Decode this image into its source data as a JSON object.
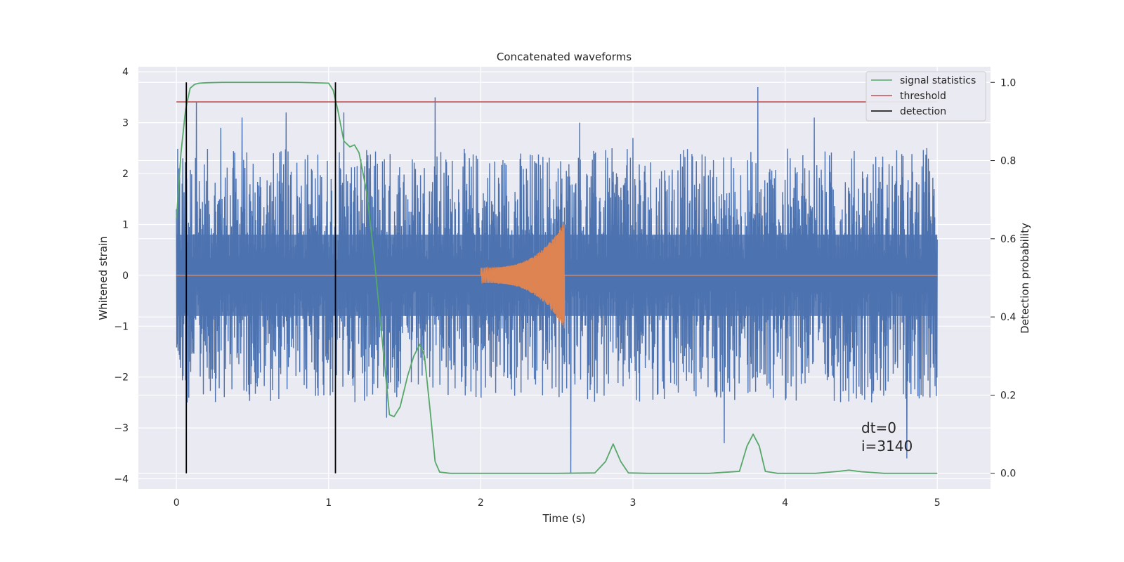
{
  "chart_data": {
    "type": "line",
    "title": "Concatenated waveforms",
    "xlabel": "Time (s)",
    "ylabel": "Whitened strain",
    "ylabel_right": "Detection probability",
    "xlim": [
      -0.25,
      5.35
    ],
    "ylim": [
      -4.2,
      4.1
    ],
    "ylim_right": [
      -0.04,
      1.04
    ],
    "xticks": [
      0,
      1,
      2,
      3,
      4,
      5
    ],
    "yticks": [
      -4,
      -3,
      -2,
      -1,
      0,
      1,
      2,
      3,
      4
    ],
    "yticks_right": [
      0.0,
      0.2,
      0.4,
      0.6,
      0.8,
      1.0
    ],
    "xtick_labels": [
      "0",
      "1",
      "2",
      "3",
      "4",
      "5"
    ],
    "ytick_labels": [
      "−4",
      "−3",
      "−2",
      "−1",
      "0",
      "1",
      "2",
      "3",
      "4"
    ],
    "ytick_labels_right": [
      "0.0",
      "0.2",
      "0.4",
      "0.6",
      "0.8",
      "1.0"
    ],
    "grid": true,
    "legend_position": "top-right",
    "colors": {
      "strain": "#4c72b0",
      "waveform": "#dd8452",
      "signal_statistics": "#55a868",
      "threshold": "#c44e52",
      "detection": "#000000",
      "background": "#eaeaf2"
    },
    "series": [
      {
        "name": "signal statistics",
        "axis": "right",
        "x": [
          0.0,
          0.03,
          0.06,
          0.09,
          0.12,
          0.15,
          0.2,
          0.3,
          0.5,
          0.8,
          1.0,
          1.03,
          1.06,
          1.1,
          1.14,
          1.17,
          1.2,
          1.25,
          1.3,
          1.35,
          1.4,
          1.43,
          1.47,
          1.52,
          1.56,
          1.6,
          1.63,
          1.67,
          1.7,
          1.73,
          1.8,
          2.0,
          2.5,
          2.75,
          2.82,
          2.87,
          2.92,
          2.97,
          3.1,
          3.5,
          3.7,
          3.75,
          3.79,
          3.83,
          3.87,
          3.95,
          4.2,
          4.35,
          4.42,
          4.5,
          4.65,
          5.0
        ],
        "values": [
          0.65,
          0.82,
          0.93,
          0.985,
          0.995,
          0.998,
          0.999,
          1.0,
          1.0,
          1.0,
          0.998,
          0.98,
          0.93,
          0.85,
          0.835,
          0.84,
          0.82,
          0.72,
          0.55,
          0.35,
          0.15,
          0.145,
          0.17,
          0.25,
          0.3,
          0.33,
          0.3,
          0.15,
          0.03,
          0.003,
          0.0,
          0.0,
          0.0,
          0.001,
          0.03,
          0.075,
          0.03,
          0.001,
          0.0,
          0.0,
          0.005,
          0.07,
          0.1,
          0.07,
          0.005,
          0.0,
          0.0,
          0.005,
          0.008,
          0.004,
          0.0,
          0.0
        ]
      },
      {
        "name": "threshold",
        "axis": "right",
        "x": [
          0.0,
          5.0
        ],
        "values": [
          0.95,
          0.95
        ]
      },
      {
        "name": "detection",
        "axis": "right",
        "vlines_x": [
          0.065,
          1.045
        ],
        "vline_range": [
          0.0,
          1.0
        ]
      },
      {
        "axis": "left",
        "x_range": [
          0.0,
          5.0
        ],
        "band": [
          -0.8,
          0.8
        ],
        "peaks": [
          {
            "x": 0.0,
            "y": 1.3
          },
          {
            "x": 0.04,
            "y": 2.3
          },
          {
            "x": 0.07,
            "y": -2.5
          },
          {
            "x": 0.13,
            "y": 3.4
          },
          {
            "x": 0.29,
            "y": 2.9
          },
          {
            "x": 0.43,
            "y": 3.1
          },
          {
            "x": 0.72,
            "y": 3.2
          },
          {
            "x": 1.1,
            "y": 3.2
          },
          {
            "x": 1.38,
            "y": -2.8
          },
          {
            "x": 1.7,
            "y": 3.5
          },
          {
            "x": 2.59,
            "y": -3.9
          },
          {
            "x": 2.65,
            "y": 3.0
          },
          {
            "x": 3.0,
            "y": 2.7
          },
          {
            "x": 3.6,
            "y": -3.3
          },
          {
            "x": 3.82,
            "y": 3.7
          },
          {
            "x": 4.19,
            "y": 3.1
          },
          {
            "x": 4.8,
            "y": -3.6
          },
          {
            "x": 4.93,
            "y": 2.5
          }
        ]
      },
      {
        "axis": "left",
        "chirp_x_range": [
          2.0,
          2.55
        ],
        "chirp_amplitude": [
          0.15,
          1.05
        ],
        "values_outside": 0
      }
    ],
    "legend": [
      "signal statistics",
      "threshold",
      "detection"
    ],
    "annotations": [
      "dt=0",
      "i=3140"
    ]
  }
}
